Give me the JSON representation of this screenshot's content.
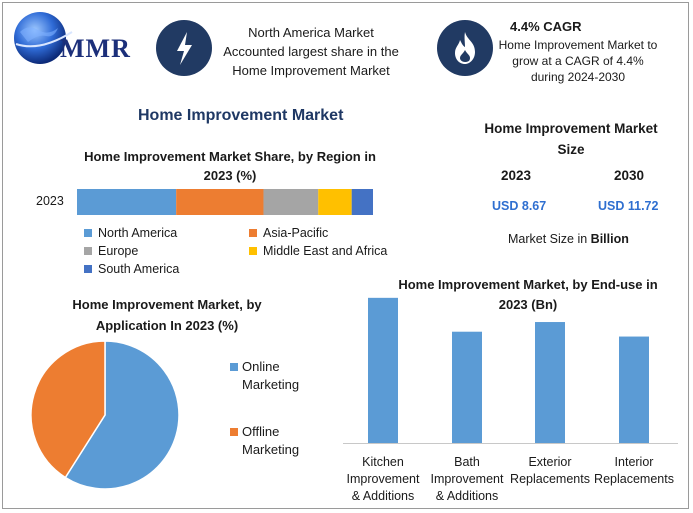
{
  "logo": {
    "text": "MMR"
  },
  "header": {
    "box1_text": "North America Market Accounted largest share in the Home Improvement Market",
    "box2_title": "4.4% CAGR",
    "box2_text": "Home Improvement Market to grow at a CAGR of 4.4% during 2024-2030",
    "icon1": "lightning-icon",
    "icon2": "flame-icon"
  },
  "main_title": "Home Improvement Market",
  "size_panel": {
    "title": "Home Improvement Market Size",
    "year1": "2023",
    "year2": "2030",
    "value1": "USD 8.67",
    "value2": "USD 11.72",
    "note_prefix": "Market Size in ",
    "note_bold": "Billion"
  },
  "colors": {
    "navy": "#213a63",
    "title": "#1f3864",
    "blue": "#5b9bd5",
    "orange": "#ed7d31",
    "gray": "#a5a5a5",
    "yellow": "#ffc000",
    "darkblue": "#4472c4"
  },
  "chart_data": [
    {
      "type": "bar",
      "orientation": "horizontal-stacked",
      "title": "Home Improvement Market Share, by Region in 2023 (%)",
      "categories": [
        "2023"
      ],
      "series": [
        {
          "name": "North America",
          "values": [
            33.5
          ]
        },
        {
          "name": "Asia-Pacific",
          "values": [
            29.5
          ]
        },
        {
          "name": "Europe",
          "values": [
            18.5
          ]
        },
        {
          "name": "Middle East and Africa",
          "values": [
            11.3
          ]
        },
        {
          "name": "South America",
          "values": [
            7.2
          ]
        }
      ],
      "xlim": [
        0,
        100
      ],
      "legend": "bottom"
    },
    {
      "type": "pie",
      "title": "Home Improvement Market, by Application In 2023 (%)",
      "labels": [
        "Online Marketing",
        "Offline Marketing"
      ],
      "values": [
        59,
        41
      ],
      "legend": "right"
    },
    {
      "type": "bar",
      "title": "Home Improvement Market, by End-use in 2023 (Bn)",
      "categories": [
        "Kitchen Improvement & Additions",
        "Bath Improvement & Additions",
        "Exterior Replacements",
        "Interior Replacements"
      ],
      "category_lines": [
        [
          "Kitchen",
          "Improvement",
          "& Additions"
        ],
        [
          "Bath",
          "Improvement",
          "& Additions"
        ],
        [
          "Exterior",
          "Replacements"
        ],
        [
          "Interior",
          "Replacements"
        ]
      ],
      "values": [
        3.0,
        2.3,
        2.5,
        2.2
      ],
      "ylim": [
        0,
        3.1
      ],
      "grid": false
    }
  ]
}
